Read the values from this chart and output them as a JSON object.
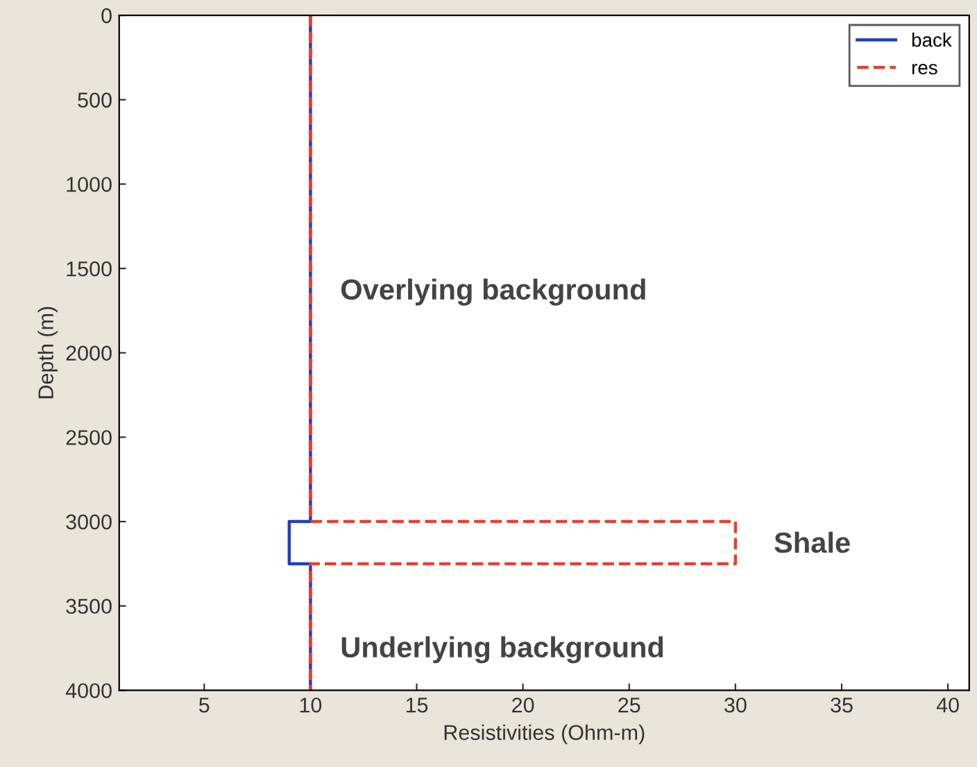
{
  "chart_data": {
    "type": "line",
    "xlabel": "Resistivities (Ohm-m)",
    "ylabel": "Depth (m)",
    "xlim": [
      1,
      41
    ],
    "xticks": [
      5,
      10,
      15,
      20,
      25,
      30,
      35,
      40
    ],
    "ylim": [
      4000,
      0
    ],
    "yticks": [
      0,
      500,
      1000,
      1500,
      2000,
      2500,
      3000,
      3500,
      4000
    ],
    "series": [
      {
        "name": "back",
        "color": "#1f3fbf",
        "line_style": "solid",
        "x": [
          10,
          10,
          9,
          9,
          10,
          10
        ],
        "values": [
          0,
          3000,
          3000,
          3250,
          3250,
          4000
        ]
      },
      {
        "name": "res",
        "color": "#e8412c",
        "line_style": "dashed",
        "x": [
          10,
          10,
          30,
          30,
          10,
          10
        ],
        "values": [
          0,
          3000,
          3000,
          3250,
          3250,
          4000
        ]
      }
    ],
    "annotations": [
      "Overlying background",
      "Shale",
      "Underlying background"
    ],
    "legend": "top right",
    "grid": false,
    "marker": "none"
  }
}
